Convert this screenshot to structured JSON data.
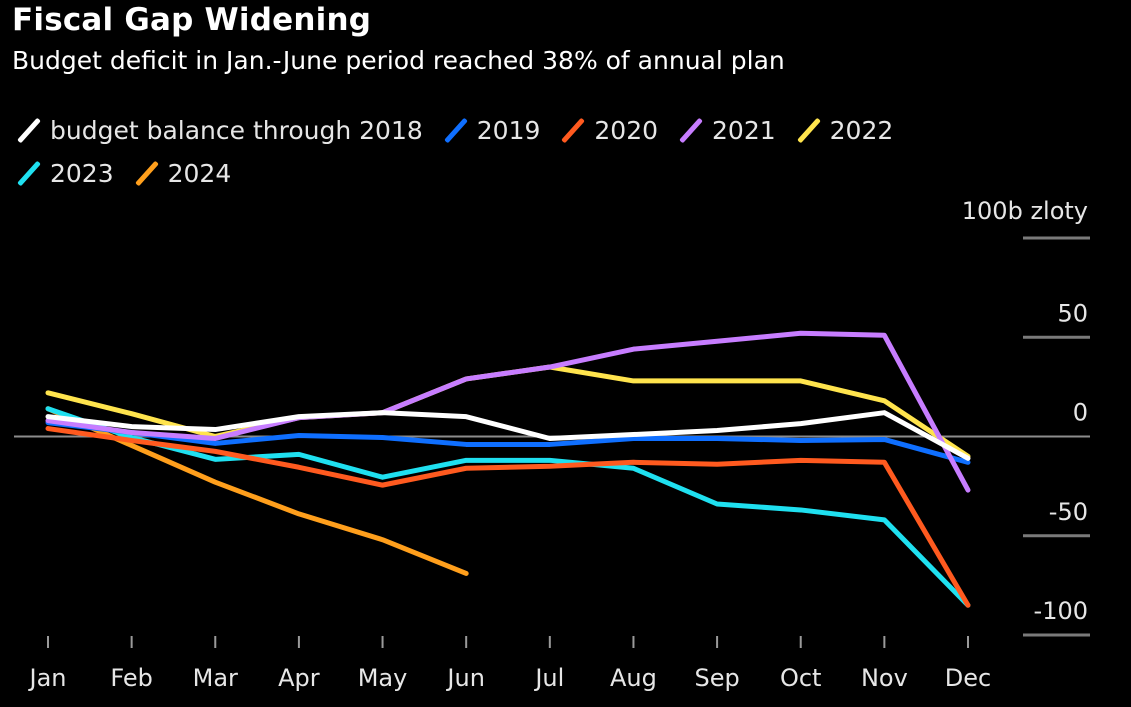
{
  "chart_data": {
    "type": "line",
    "title": "Fiscal Gap Widening",
    "subtitle": "Budget deficit in Jan.-June period reached 38% of annual plan",
    "xlabel": "",
    "ylabel": "100b zloty",
    "unit_label": "100b zloty",
    "categories": [
      "Jan",
      "Feb",
      "Mar",
      "Apr",
      "May",
      "Jun",
      "Jul",
      "Aug",
      "Sep",
      "Oct",
      "Nov",
      "Dec"
    ],
    "ylim": [
      -100,
      100
    ],
    "yticks": [
      100,
      50,
      0,
      -50,
      -100
    ],
    "ytick_labels": [
      "",
      "50",
      "0",
      "-50",
      "-100"
    ],
    "grid": true,
    "legend_position": "top-left",
    "series": [
      {
        "name": "budget balance through 2018",
        "color": "#ffffff",
        "values": [
          10,
          5,
          3.5,
          10,
          12,
          10,
          -1,
          1,
          3,
          6.5,
          12,
          -11
        ]
      },
      {
        "name": "2019",
        "color": "#0f6fff",
        "values": [
          7,
          2,
          -3.5,
          0.5,
          -0.5,
          -4,
          -4,
          -1,
          -1,
          -2,
          -1.5,
          -13
        ]
      },
      {
        "name": "2020",
        "color": "#ff5a1f",
        "values": [
          4,
          -2,
          -7.5,
          -15.5,
          -24.5,
          -16,
          -15,
          -13,
          -14,
          -12,
          -13,
          -85
        ]
      },
      {
        "name": "2021",
        "color": "#c77dff",
        "values": [
          8,
          2,
          -1,
          9.5,
          12,
          29,
          35,
          44,
          48,
          52,
          51,
          -27
        ]
      },
      {
        "name": "2022",
        "color": "#ffe44d",
        "values": [
          22,
          11.5,
          0,
          9.5,
          12,
          29,
          35,
          28,
          28,
          28,
          18,
          -10
        ]
      },
      {
        "name": "2023",
        "color": "#1fe0f0",
        "values": [
          14,
          -0.5,
          -11.5,
          -9,
          -20.5,
          -12,
          -12,
          -16,
          -34,
          -37,
          -42,
          -85
        ]
      },
      {
        "name": "2024",
        "color": "#ff9f1c",
        "values": [
          14,
          -4.5,
          -23,
          -39,
          -52,
          -69,
          null,
          null,
          null,
          null,
          null,
          null
        ]
      }
    ]
  }
}
